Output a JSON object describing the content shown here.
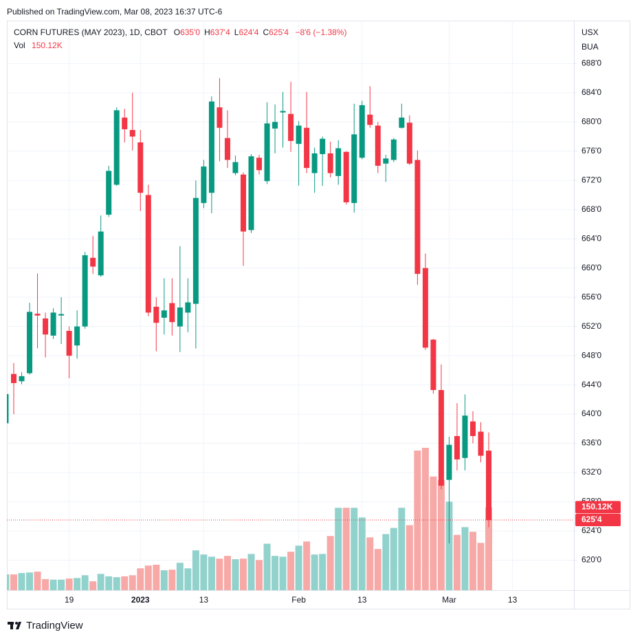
{
  "header": {
    "published": "Published on TradingView.com, Mar 08, 2023 16:37 UTC-6",
    "symbol": "CORN FUTURES (MAY 2023), 1D, CBOT",
    "ohlc": [
      {
        "key": "O",
        "value": "635'0"
      },
      {
        "key": "H",
        "value": "637'4"
      },
      {
        "key": "L",
        "value": "624'4"
      },
      {
        "key": "C",
        "value": "625'4"
      }
    ],
    "change": "−8'6 (−1.38%)",
    "vol_label": "Vol",
    "vol_value": "150.12K",
    "currency": "USX",
    "unit": "BUA"
  },
  "footer": {
    "brand": "TradingView"
  },
  "chart_data": {
    "type": "candlestick",
    "categories": [
      null,
      null,
      null,
      null,
      null,
      null,
      null,
      null,
      "19",
      null,
      null,
      null,
      null,
      null,
      null,
      null,
      null,
      "2023",
      null,
      null,
      null,
      null,
      null,
      null,
      null,
      "13",
      null,
      null,
      null,
      null,
      null,
      null,
      null,
      null,
      null,
      null,
      null,
      "Feb",
      null,
      null,
      null,
      null,
      null,
      null,
      null,
      "13",
      null,
      null,
      null,
      null,
      null,
      null,
      null,
      null,
      null,
      null,
      "Mar",
      null,
      null,
      null,
      null,
      null,
      null,
      null,
      "13"
    ],
    "open": [
      638.75,
      645.5,
      644.5,
      645.6,
      653.75,
      653.1,
      650.75,
      653.5,
      651.4,
      649.4,
      652,
      661.4,
      659,
      667.3,
      671.4,
      680.6,
      678.9,
      677.2,
      670,
      654.7,
      653.2,
      655.2,
      652,
      653.9,
      655.1,
      668.9,
      670.3,
      682,
      677.8,
      673,
      672.8,
      665.2,
      675.1,
      671.9,
      679.1,
      681.3,
      681.1,
      677,
      679.2,
      673,
      675.6,
      675.7,
      672.6,
      675.9,
      668.9,
      675.1,
      681,
      679.5,
      674.3,
      674.8,
      679.2,
      679.9,
      674.8,
      660,
      650.2,
      643.3,
      631,
      637,
      634,
      639,
      637.6,
      635,
      null,
      null,
      null
    ],
    "high": [
      643,
      647,
      645.75,
      655.25,
      659.25,
      653.9,
      654.5,
      656,
      652,
      654.2,
      662.2,
      664.4,
      667.2,
      674,
      682,
      681.8,
      684,
      678.9,
      671.4,
      656,
      658.6,
      658.6,
      663,
      658.6,
      672,
      674.8,
      683.5,
      686,
      681.6,
      675.4,
      673.1,
      675.6,
      675.5,
      682.7,
      682.4,
      684.1,
      685.5,
      680.1,
      684.1,
      676.5,
      678,
      677.3,
      677.5,
      676,
      682.5,
      682.9,
      684.9,
      680,
      675.5,
      677.8,
      682.5,
      680.9,
      676.1,
      662,
      650.3,
      646.8,
      636.9,
      641.5,
      642.7,
      640.4,
      638.9,
      637.5,
      null,
      null,
      null
    ],
    "low": [
      638.5,
      640,
      644.1,
      645.4,
      649,
      647.75,
      650.3,
      649.6,
      644.9,
      647.6,
      651.7,
      659.2,
      658.8,
      667,
      671.25,
      677.2,
      676.1,
      667.8,
      653.4,
      648.6,
      650.9,
      650.75,
      648.5,
      651.2,
      649,
      668.2,
      667.5,
      674.6,
      673.7,
      672.7,
      660.3,
      664.8,
      672.8,
      671.5,
      675.7,
      676.5,
      675.9,
      671.3,
      673,
      670.3,
      671.25,
      672.4,
      671.4,
      668.7,
      667.6,
      674.9,
      679.2,
      673,
      671.8,
      674.5,
      679.1,
      674.1,
      657.7,
      648.8,
      642.8,
      629.7,
      622.3,
      632.3,
      632.3,
      636,
      633.4,
      624.5,
      null,
      null,
      null
    ],
    "close": [
      642.75,
      644.25,
      645.2,
      654,
      653.5,
      650.9,
      653.9,
      653.7,
      648,
      652,
      661.75,
      660.2,
      665,
      673.3,
      681.6,
      679,
      678,
      670.3,
      653.9,
      652.5,
      654.2,
      652.6,
      654.6,
      655.3,
      669.6,
      673.9,
      682.8,
      679.2,
      674.8,
      674.5,
      665,
      675.3,
      673.4,
      679.8,
      680,
      681.5,
      677.4,
      679.5,
      673.7,
      675.7,
      677.7,
      673,
      676.4,
      669,
      678.3,
      682.3,
      679.6,
      674,
      675,
      677.6,
      680.6,
      674.3,
      659.2,
      649.1,
      643.3,
      630.2,
      635.8,
      633.8,
      639.8,
      637,
      634.3,
      625.5,
      null,
      null,
      null
    ],
    "volume": [
      28500,
      28500,
      31000,
      32000,
      33500,
      20000,
      19000,
      19000,
      21000,
      22000,
      27000,
      16000,
      29500,
      25000,
      23500,
      25000,
      27000,
      39500,
      44500,
      46000,
      36000,
      37000,
      49500,
      39500,
      72000,
      64500,
      60500,
      57000,
      62000,
      56000,
      57000,
      65500,
      54500,
      84000,
      62000,
      60500,
      69500,
      80500,
      88000,
      64500,
      65500,
      98000,
      149000,
      149000,
      149000,
      131500,
      95500,
      74500,
      101500,
      112500,
      149000,
      117500,
      252500,
      257500,
      205500,
      199000,
      160000,
      100000,
      114000,
      105500,
      85500,
      150120,
      null,
      null,
      null
    ],
    "ylim": [
      615.9,
      693.4
    ],
    "yticks": [
      {
        "value": 620,
        "label": "620'0"
      },
      {
        "value": 624,
        "label": "624'0"
      },
      {
        "value": 628,
        "label": "628'0"
      },
      {
        "value": 632,
        "label": "632'0"
      },
      {
        "value": 636,
        "label": "636'0"
      },
      {
        "value": 640,
        "label": "640'0"
      },
      {
        "value": 644,
        "label": "644'0"
      },
      {
        "value": 648,
        "label": "648'0"
      },
      {
        "value": 652,
        "label": "652'0"
      },
      {
        "value": 656,
        "label": "656'0"
      },
      {
        "value": 660,
        "label": "660'0"
      },
      {
        "value": 664,
        "label": "664'0"
      },
      {
        "value": 668,
        "label": "668'0"
      },
      {
        "value": 672,
        "label": "672'0"
      },
      {
        "value": 676,
        "label": "676'0"
      },
      {
        "value": 680,
        "label": "680'0"
      },
      {
        "value": 684,
        "label": "684'0"
      },
      {
        "value": 688,
        "label": "688'0"
      }
    ],
    "grid": true,
    "up_color": "#089981",
    "down_color": "#f23645",
    "volume_up_color": "#92d2cc",
    "volume_down_color": "#f7a9a7"
  }
}
